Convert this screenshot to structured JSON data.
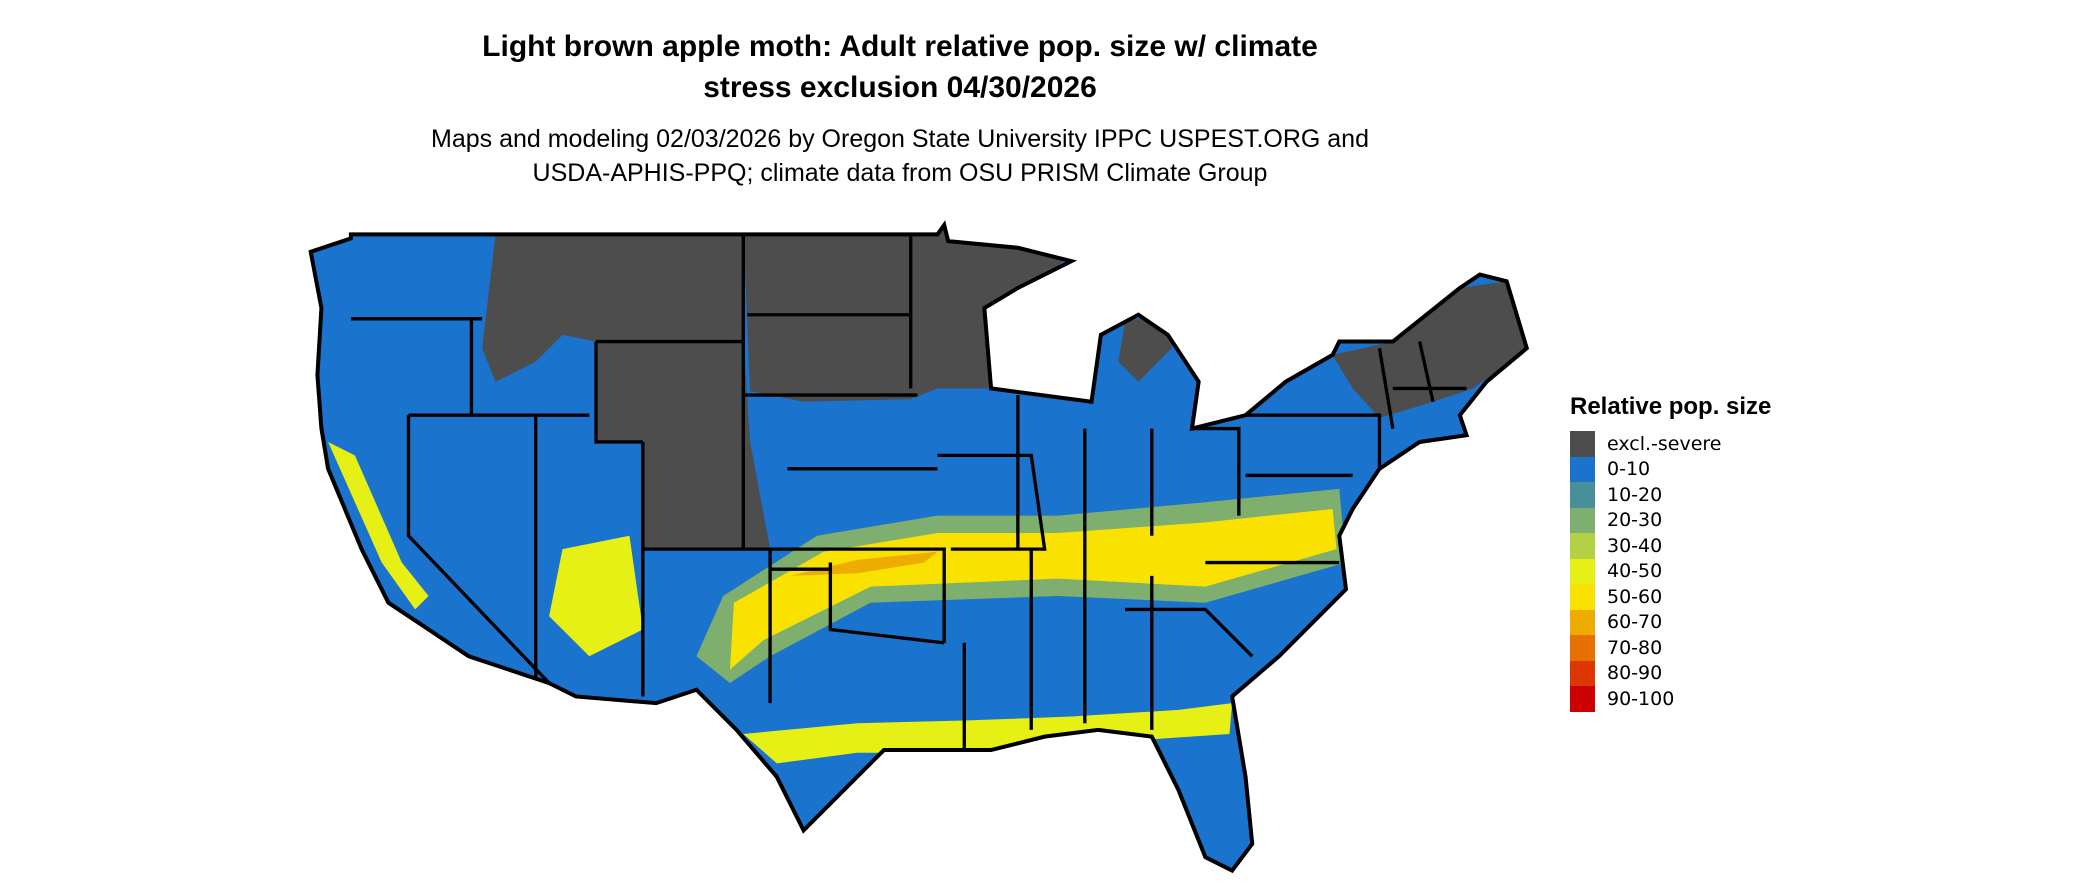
{
  "title_line1": "Light brown apple moth: Adult relative pop. size w/ climate",
  "title_line2": "stress exclusion 04/30/2026",
  "subtitle_line1": "Maps and modeling 02/03/2026 by Oregon State University IPPC USPEST.ORG and",
  "subtitle_line2": "USDA-APHIS-PPQ; climate data from OSU PRISM Climate Group",
  "legend": {
    "title": "Relative pop. size",
    "items": [
      {
        "label": "excl.-severe",
        "color": "#4d4d4d"
      },
      {
        "label": "0-10",
        "color": "#1a73cc"
      },
      {
        "label": "10-20",
        "color": "#47909a"
      },
      {
        "label": "20-30",
        "color": "#7eaf6f"
      },
      {
        "label": "30-40",
        "color": "#b2d145"
      },
      {
        "label": "40-50",
        "color": "#e6f014"
      },
      {
        "label": "50-60",
        "color": "#f9e100"
      },
      {
        "label": "60-70",
        "color": "#eeab00"
      },
      {
        "label": "70-80",
        "color": "#e67100"
      },
      {
        "label": "80-90",
        "color": "#dc3700"
      },
      {
        "label": "90-100",
        "color": "#cc0000"
      }
    ]
  }
}
